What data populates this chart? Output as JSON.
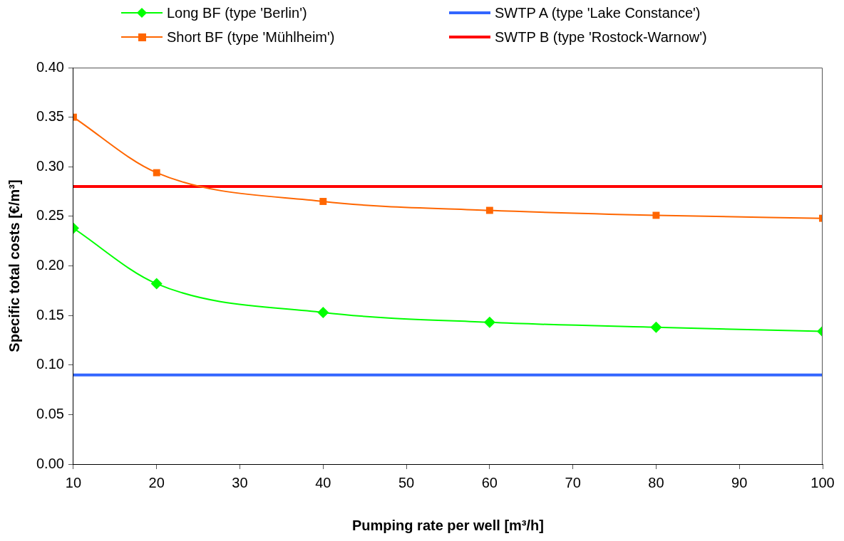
{
  "chart_data": {
    "type": "line",
    "xlabel": "Pumping rate per well [m³/h]",
    "ylabel": "Specific total costs [€/m³]",
    "series": [
      {
        "name": "Long BF (type 'Berlin')",
        "color": "#00ff00",
        "marker": "diamond",
        "x": [
          10,
          20,
          40,
          60,
          80,
          100
        ],
        "values": [
          0.238,
          0.182,
          0.153,
          0.143,
          0.138,
          0.134
        ]
      },
      {
        "name": "Short BF (type 'Mühlheim')",
        "color": "#ff6600",
        "marker": "square",
        "x": [
          10,
          20,
          40,
          60,
          80,
          100
        ],
        "values": [
          0.35,
          0.294,
          0.265,
          0.256,
          0.251,
          0.248
        ]
      },
      {
        "name": "SWTP A (type 'Lake Constance')",
        "color": "#3366ff",
        "marker": "none",
        "x": [
          10,
          100
        ],
        "values": [
          0.09,
          0.09
        ]
      },
      {
        "name": "SWTP B (type 'Rostock-Warnow')",
        "color": "#ff0000",
        "marker": "none",
        "x": [
          10,
          100
        ],
        "values": [
          0.28,
          0.28
        ]
      }
    ],
    "xlim": [
      10,
      100
    ],
    "xticks": [
      10,
      20,
      30,
      40,
      50,
      60,
      70,
      80,
      90,
      100
    ],
    "ylim": [
      0,
      0.4
    ],
    "yticks": [
      {
        "value": 0,
        "label": "0.00"
      },
      {
        "value": 0.05,
        "label": "0.05"
      },
      {
        "value": 0.1,
        "label": "0.10"
      },
      {
        "value": 0.15,
        "label": "0.15"
      },
      {
        "value": 0.2,
        "label": "0.20"
      },
      {
        "value": 0.25,
        "label": "0.25"
      },
      {
        "value": 0.3,
        "label": "0.30"
      },
      {
        "value": 0.35,
        "label": "0.35"
      },
      {
        "value": 0.4,
        "label": "0.40"
      }
    ],
    "grid": false,
    "legend": "top"
  }
}
